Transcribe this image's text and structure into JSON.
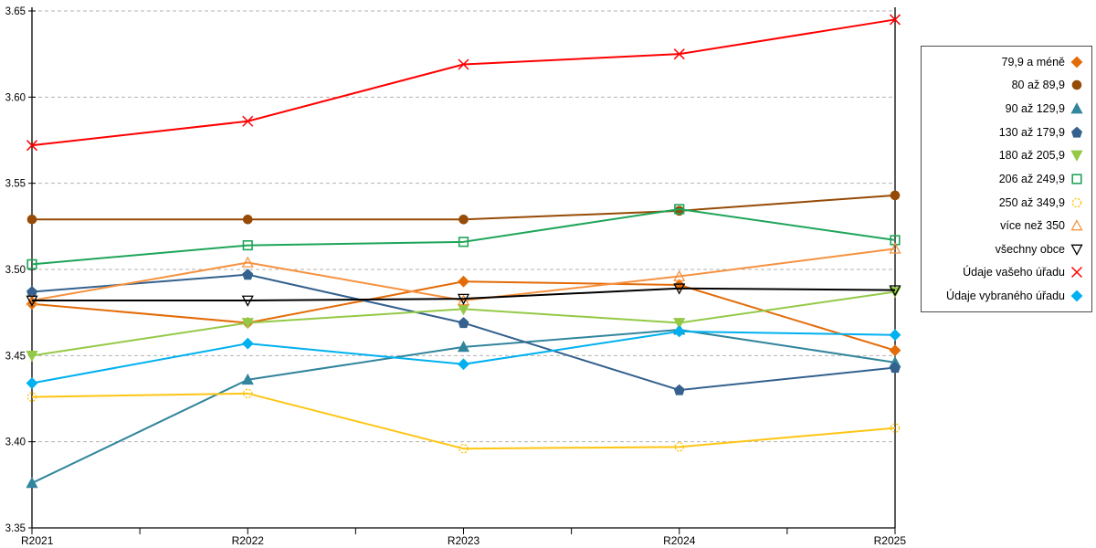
{
  "chart_data": {
    "type": "line",
    "title": "",
    "xlabel": "",
    "ylabel": "",
    "categories": [
      "R2021",
      "R2022",
      "R2023",
      "R2024",
      "R2025"
    ],
    "ylim": [
      3.35,
      3.65
    ],
    "ytick_step": 0.05,
    "ytick_labels": [
      "3.35",
      "3.40",
      "3.45",
      "3.50",
      "3.55",
      "3.60",
      "3.65"
    ],
    "grid": "horizontal-dashed",
    "legend_position": "right-outside",
    "series": [
      {
        "name": "79,9 a méně",
        "color": "#E36C09",
        "marker": "diamond",
        "open": false,
        "values": [
          3.48,
          3.469,
          3.493,
          3.491,
          3.453
        ]
      },
      {
        "name": "80 až 89,9",
        "color": "#964B06",
        "marker": "circle",
        "open": false,
        "values": [
          3.529,
          3.529,
          3.529,
          3.534,
          3.543
        ]
      },
      {
        "name": "90 až 129,9",
        "color": "#31859C",
        "marker": "triangle-up",
        "open": false,
        "values": [
          3.376,
          3.436,
          3.455,
          3.465,
          3.446
        ]
      },
      {
        "name": "130 až 179,9",
        "color": "#34618E",
        "marker": "pentagon",
        "open": false,
        "values": [
          3.487,
          3.497,
          3.469,
          3.43,
          3.443
        ]
      },
      {
        "name": "180 až 205,9",
        "color": "#94C947",
        "marker": "triangle-down",
        "open": false,
        "values": [
          3.45,
          3.469,
          3.477,
          3.469,
          3.487
        ]
      },
      {
        "name": "206 až 249,9",
        "color": "#1EA559",
        "marker": "square",
        "open": true,
        "values": [
          3.503,
          3.514,
          3.516,
          3.535,
          3.517
        ]
      },
      {
        "name": "250 až 349,9",
        "color": "#FFC514",
        "marker": "circle",
        "open": true,
        "dashed_marker": true,
        "values": [
          3.426,
          3.428,
          3.396,
          3.397,
          3.408
        ]
      },
      {
        "name": "více než 350",
        "color": "#F69240",
        "marker": "triangle-up",
        "open": true,
        "values": [
          3.482,
          3.504,
          3.482,
          3.496,
          3.512
        ]
      },
      {
        "name": "všechny obce",
        "color": "#000000",
        "marker": "triangle-down",
        "open": true,
        "values": [
          3.482,
          3.482,
          3.483,
          3.489,
          3.488
        ]
      },
      {
        "name": "Údaje vašeho úřadu",
        "color": "#FF0000",
        "marker": "x",
        "open": true,
        "values": [
          3.572,
          3.586,
          3.619,
          3.625,
          3.645
        ]
      },
      {
        "name": "Údaje vybraného úřadu",
        "color": "#00B0F0",
        "marker": "diamond",
        "open": false,
        "values": [
          3.434,
          3.457,
          3.445,
          3.464,
          3.462
        ]
      }
    ]
  },
  "style": {
    "grid_color": "#b3b3b3",
    "axis_color": "#000000",
    "background": "#ffffff"
  }
}
